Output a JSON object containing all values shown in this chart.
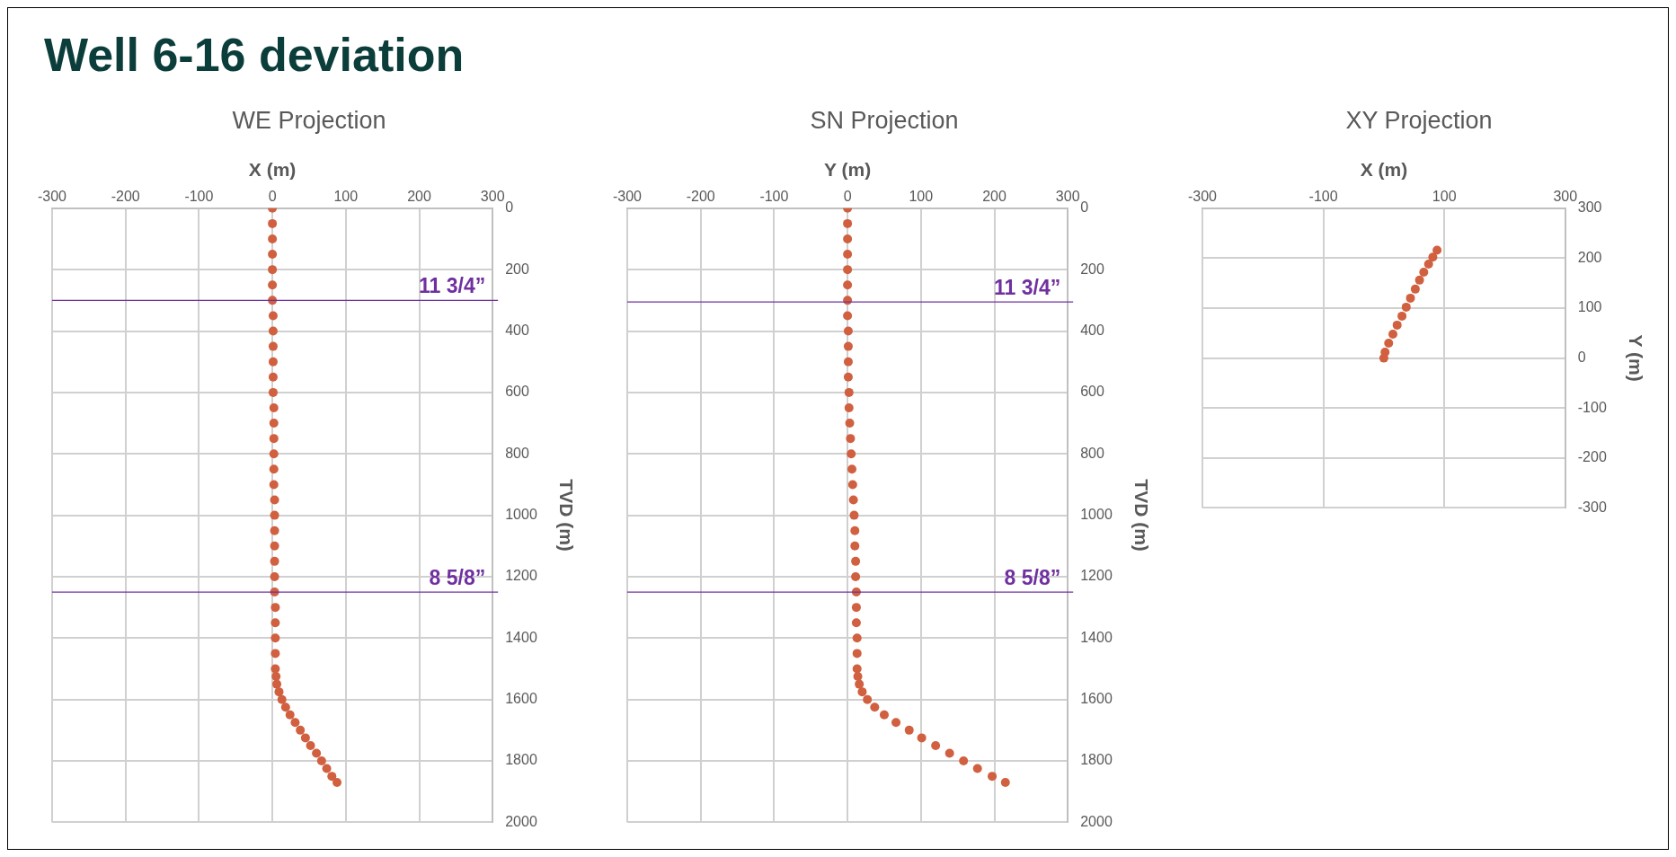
{
  "chart_data": [
    {
      "type": "scatter",
      "title": "WE Projection",
      "annotations": [
        "Well 6-16 deviation"
      ],
      "xlabel": "X (m)",
      "ylabel": "TVD (m)",
      "xlim": [
        -300,
        300
      ],
      "xticks": [
        -300,
        -200,
        -100,
        0,
        100,
        200,
        300
      ],
      "ylim": [
        2000,
        0
      ],
      "yticks": [
        0,
        200,
        400,
        600,
        800,
        1000,
        1200,
        1400,
        1600,
        1800,
        2000
      ],
      "grid": true,
      "marker": "circle",
      "series": [
        {
          "color": "#d0603f",
          "x": [
            0,
            0,
            0,
            0,
            0,
            0,
            0,
            1,
            1,
            1,
            1,
            1,
            1,
            2,
            2,
            2,
            2,
            2,
            2,
            3,
            3,
            3,
            3,
            3,
            3,
            3,
            4,
            4,
            4,
            4,
            4,
            5,
            6,
            9,
            13,
            18,
            24,
            31,
            38,
            45,
            52,
            60,
            67,
            74,
            81,
            88
          ],
          "values": [
            0,
            50,
            100,
            150,
            200,
            250,
            300,
            350,
            400,
            450,
            500,
            550,
            600,
            650,
            700,
            750,
            800,
            850,
            900,
            950,
            1000,
            1050,
            1100,
            1150,
            1200,
            1250,
            1300,
            1350,
            1400,
            1450,
            1500,
            1525,
            1550,
            1575,
            1600,
            1625,
            1650,
            1675,
            1700,
            1725,
            1750,
            1775,
            1800,
            1825,
            1850,
            1870
          ]
        }
      ],
      "ref_lines": [
        {
          "axis": "y",
          "value": 300,
          "label": "11 3/4”",
          "color": "#7030a0"
        },
        {
          "axis": "y",
          "value": 1250,
          "label": "8 5/8”",
          "color": "#7030a0"
        }
      ]
    },
    {
      "type": "scatter",
      "title": "SN Projection",
      "xlabel": "Y (m)",
      "ylabel": "TVD (m)",
      "xlim": [
        -300,
        300
      ],
      "xticks": [
        -300,
        -200,
        -100,
        0,
        100,
        200,
        300
      ],
      "ylim": [
        2000,
        0
      ],
      "yticks": [
        0,
        200,
        400,
        600,
        800,
        1000,
        1200,
        1400,
        1600,
        1800,
        2000
      ],
      "grid": true,
      "marker": "circle",
      "series": [
        {
          "color": "#d0603f",
          "x": [
            0,
            0,
            0,
            0,
            0,
            0,
            0,
            0,
            1,
            1,
            1,
            1,
            2,
            2,
            3,
            4,
            5,
            6,
            7,
            8,
            9,
            10,
            10,
            11,
            11,
            12,
            12,
            12,
            13,
            13,
            13,
            14,
            16,
            20,
            27,
            37,
            50,
            66,
            84,
            101,
            120,
            139,
            158,
            177,
            197,
            215
          ],
          "values": [
            0,
            50,
            100,
            150,
            200,
            250,
            300,
            350,
            400,
            450,
            500,
            550,
            600,
            650,
            700,
            750,
            800,
            850,
            900,
            950,
            1000,
            1050,
            1100,
            1150,
            1200,
            1250,
            1300,
            1350,
            1400,
            1450,
            1500,
            1525,
            1550,
            1575,
            1600,
            1625,
            1650,
            1675,
            1700,
            1725,
            1750,
            1775,
            1800,
            1825,
            1850,
            1870
          ]
        }
      ],
      "ref_lines": [
        {
          "axis": "y",
          "value": 305,
          "label": "11 3/4”",
          "color": "#7030a0"
        },
        {
          "axis": "y",
          "value": 1250,
          "label": "8 5/8”",
          "color": "#7030a0"
        }
      ]
    },
    {
      "type": "scatter",
      "title": "XY Projection",
      "xlabel": "X (m)",
      "ylabel": "Y (m)",
      "xlim": [
        -300,
        300
      ],
      "xticks": [
        -300,
        -100,
        100,
        300
      ],
      "ylim": [
        -300,
        300
      ],
      "yticks": [
        -300,
        -200,
        -100,
        0,
        100,
        200,
        300
      ],
      "grid": true,
      "marker": "circle",
      "series": [
        {
          "color": "#d0603f",
          "x": [
            0,
            2,
            8,
            15,
            22,
            30,
            37,
            44,
            52,
            59,
            66,
            74,
            81,
            88
          ],
          "values": [
            0,
            12,
            30,
            48,
            66,
            84,
            102,
            120,
            138,
            156,
            172,
            188,
            202,
            216
          ]
        }
      ]
    }
  ]
}
